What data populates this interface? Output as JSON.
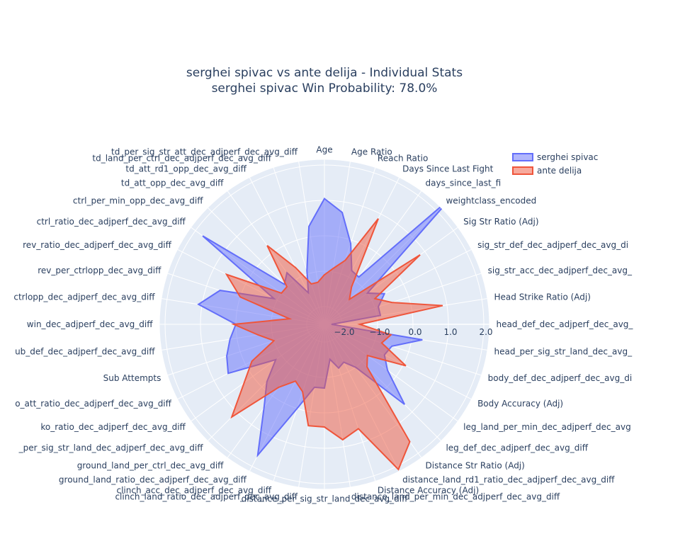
{
  "chart_data": {
    "type": "radar",
    "title": "serghei spivac vs ante delija - Individual Stats",
    "subtitle": "serghei spivac Win Probability: 78.0%",
    "categories": [
      "Age",
      "Age Ratio",
      "Reach Ratio",
      "Days Since Last Fight",
      "days_since_last_fi",
      "weightclass_encoded",
      "Sig Str Ratio (Adj)",
      "sig_str_def_dec_adjperf_dec_avg_di",
      "sig_str_acc_dec_adjperf_dec_avg_",
      "Head Strike Ratio (Adj)",
      "head_def_dec_adjperf_dec_avg_",
      "head_per_sig_str_land_dec_avg_",
      "body_def_dec_adjperf_dec_avg_di",
      "Body Accuracy (Adj)",
      "leg_land_per_min_dec_adjperf_dec_avg",
      "leg_def_dec_adjperf_dec_avg_diff",
      "Distance Str Ratio (Adj)",
      "distance_land_rd1_ratio_dec_adjperf_dec_avg_diff",
      "Distance Accuracy (Adj)",
      "distance_land_per_min_dec_adjperf_dec_avg_diff",
      "distance_per_sig_str_land_dec_avg_diff",
      "clinch_land_ratio_dec_adjperf_dec_avg_diff",
      "clinch_acc_dec_adjperf_dec_avg_diff",
      "ground_land_ratio_dec_adjperf_dec_avg_diff",
      "ground_land_per_ctrl_dec_avg_diff",
      "_per_sig_str_land_dec_adjperf_dec_avg_diff",
      "ko_ratio_dec_adjperf_dec_avg_diff",
      "o_att_ratio_dec_adjperf_dec_avg_diff",
      "Sub Attempts",
      "ub_def_dec_adjperf_dec_avg_diff",
      "win_dec_adjperf_dec_avg_diff",
      "ctrlopp_dec_adjperf_dec_avg_diff",
      "rev_per_ctrlopp_dec_avg_diff",
      "rev_ratio_dec_adjperf_dec_avg_diff",
      "ctrl_ratio_dec_adjperf_dec_avg_diff",
      "ctrl_per_min_opp_dec_avg_diff",
      "td_att_opp_dec_avg_diff",
      "td_att_rd1_opp_dec_avg_diff",
      "td_land_per_ctrl_dec_adjperf_dec_avg_diff",
      "td_per_sig_str_att_dec_adjperf_dec_avg_diff"
    ],
    "series": [
      {
        "name": "serghei spivac",
        "color": "#636efa",
        "values": [
          1.05,
          0.7,
          -0.1,
          -0.8,
          -0.85,
          2.55,
          -1.0,
          -0.6,
          -0.9,
          -0.9,
          -2.3,
          0.3,
          -0.5,
          -0.6,
          -0.3,
          0.7,
          -1.0,
          -1.3,
          -1.2,
          -1.5,
          -0.7,
          -0.7,
          0.0,
          1.65,
          0.4,
          -0.2,
          -0.8,
          0.55,
          0.4,
          0.2,
          0.0,
          1.1,
          0.6,
          -0.9,
          1.75,
          -0.9,
          -0.7,
          -1.5,
          -0.9,
          0.3
        ]
      },
      {
        "name": "ante delija",
        "color": "#ef553b",
        "values": [
          -1.1,
          -0.9,
          -0.6,
          0.85,
          -1.2,
          -1.5,
          0.84,
          -0.9,
          -0.5,
          0.88,
          -1.5,
          -0.6,
          -0.8,
          0.08,
          -1.0,
          -0.8,
          1.6,
          2.1,
          0.6,
          0.8,
          0.4,
          0.4,
          -0.5,
          -0.7,
          -0.3,
          1.2,
          0.3,
          -0.2,
          -1.0,
          -0.6,
          0.06,
          -1.5,
          0.0,
          0.6,
          -1.0,
          -1.0,
          0.25,
          -0.7,
          -1.3,
          -1.3
        ]
      }
    ],
    "ylim": [
      -2.5,
      2.15
    ],
    "yticks": [
      {
        "value": -2,
        "label": "−2.0"
      },
      {
        "value": -1,
        "label": "−1.0"
      },
      {
        "value": 0,
        "label": "0.0"
      },
      {
        "value": 1,
        "label": "1.0"
      },
      {
        "value": 2,
        "label": "2.0"
      }
    ],
    "grid": true,
    "legend": "top-right"
  }
}
